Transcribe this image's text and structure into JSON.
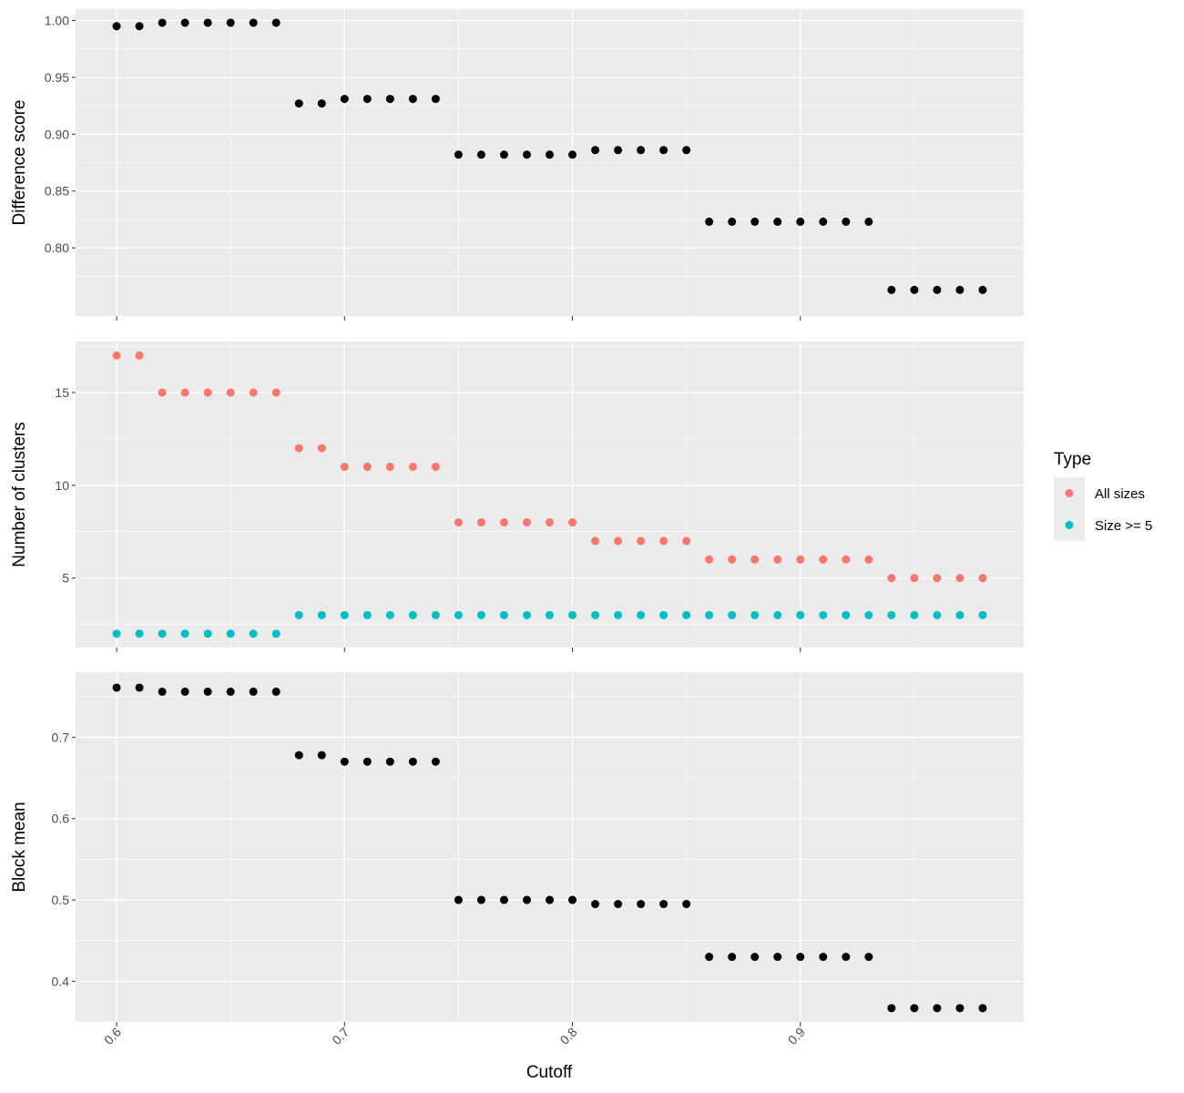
{
  "chart_data": {
    "type": "scatter",
    "xlabel": "Cutoff",
    "x": [
      0.6,
      0.61,
      0.62,
      0.63,
      0.64,
      0.65,
      0.66,
      0.67,
      0.68,
      0.69,
      0.7,
      0.71,
      0.72,
      0.73,
      0.74,
      0.75,
      0.76,
      0.77,
      0.78,
      0.79,
      0.8,
      0.81,
      0.82,
      0.83,
      0.84,
      0.85,
      0.86,
      0.87,
      0.88,
      0.89,
      0.9,
      0.91,
      0.92,
      0.93,
      0.94,
      0.95,
      0.96,
      0.97,
      0.98
    ],
    "xlim": [
      0.582,
      0.998
    ],
    "xticks": [
      "0.6",
      "0.7",
      "0.8",
      "0.9"
    ],
    "grid": true,
    "colors": {
      "background": "#ebebeb",
      "grid": "#ffffff",
      "point": "#000000"
    },
    "panels": [
      {
        "ylabel": "Difference score",
        "ylim": [
          0.74,
          1.01
        ],
        "yticks": [
          "0.80",
          "0.85",
          "0.90",
          "0.95",
          "1.00"
        ],
        "series": [
          {
            "color": "#000000",
            "values": [
              0.995,
              0.995,
              0.998,
              0.998,
              0.998,
              0.998,
              0.998,
              0.998,
              0.927,
              0.927,
              0.931,
              0.931,
              0.931,
              0.931,
              0.931,
              0.882,
              0.882,
              0.882,
              0.882,
              0.882,
              0.882,
              0.886,
              0.886,
              0.886,
              0.886,
              0.886,
              0.823,
              0.823,
              0.823,
              0.823,
              0.823,
              0.823,
              0.823,
              0.823,
              0.763,
              0.763,
              0.763,
              0.763,
              0.763
            ]
          }
        ]
      },
      {
        "ylabel": "Number of clusters",
        "ylim": [
          1.25,
          17.75
        ],
        "yticks": [
          "5",
          "10",
          "15"
        ],
        "series": [
          {
            "name": "All sizes",
            "color": "#f8766d",
            "values": [
              17,
              17,
              15,
              15,
              15,
              15,
              15,
              15,
              12,
              12,
              11,
              11,
              11,
              11,
              11,
              8,
              8,
              8,
              8,
              8,
              8,
              7,
              7,
              7,
              7,
              7,
              6,
              6,
              6,
              6,
              6,
              6,
              6,
              6,
              5,
              5,
              5,
              5,
              5
            ]
          },
          {
            "name": "Size >= 5",
            "color": "#00bfc4",
            "values": [
              2,
              2,
              2,
              2,
              2,
              2,
              2,
              2,
              3,
              3,
              3,
              3,
              3,
              3,
              3,
              3,
              3,
              3,
              3,
              3,
              3,
              3,
              3,
              3,
              3,
              3,
              3,
              3,
              3,
              3,
              3,
              3,
              3,
              3,
              3,
              3,
              3,
              3,
              3
            ]
          }
        ]
      },
      {
        "ylabel": "Block mean",
        "ylim": [
          0.35,
          0.78
        ],
        "yticks": [
          "0.4",
          "0.5",
          "0.6",
          "0.7"
        ],
        "series": [
          {
            "color": "#000000",
            "values": [
              0.761,
              0.761,
              0.756,
              0.756,
              0.756,
              0.756,
              0.756,
              0.756,
              0.678,
              0.678,
              0.67,
              0.67,
              0.67,
              0.67,
              0.67,
              0.5,
              0.5,
              0.5,
              0.5,
              0.5,
              0.5,
              0.495,
              0.495,
              0.495,
              0.495,
              0.495,
              0.43,
              0.43,
              0.43,
              0.43,
              0.43,
              0.43,
              0.43,
              0.43,
              0.367,
              0.367,
              0.367,
              0.367,
              0.367
            ]
          }
        ]
      }
    ],
    "legend": {
      "title": "Type",
      "placement": "right",
      "items": [
        {
          "label": "All sizes",
          "color": "#f8766d"
        },
        {
          "label": "Size >= 5",
          "color": "#00bfc4"
        }
      ]
    }
  }
}
